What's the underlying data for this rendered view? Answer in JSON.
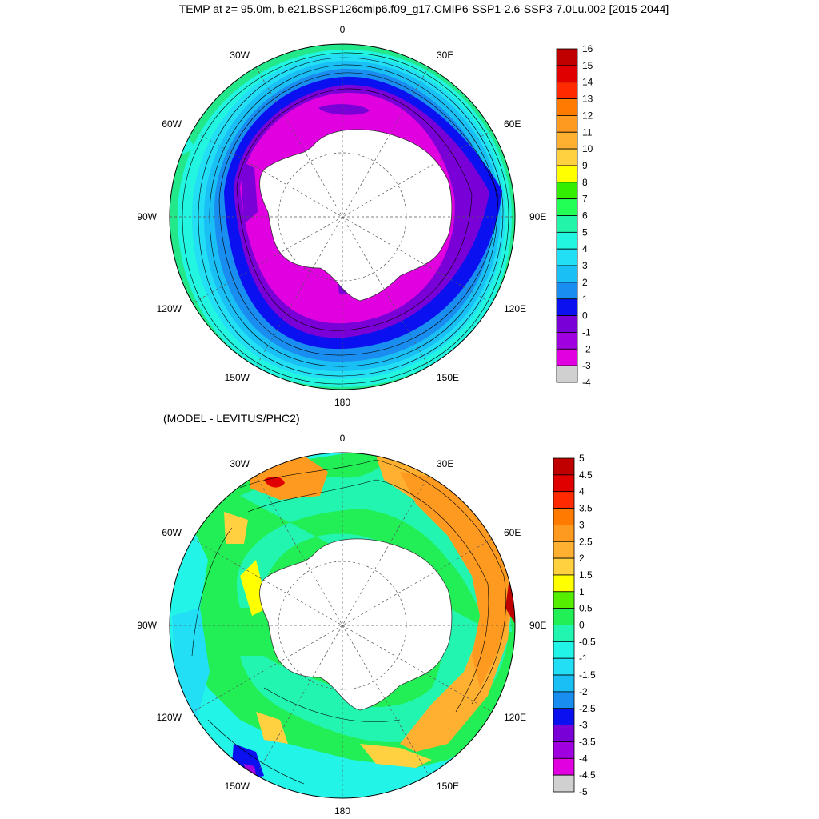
{
  "title": "TEMP at z=  95.0m, b.e21.BSSP126cmip6.f09_g17.CMIP6-SSP1-2.6-SSP3-7.0Lu.002 [2015-2044]",
  "subtitle": "(MODEL - LEVITUS/PHC2)",
  "longitude_labels": [
    "0",
    "30E",
    "60E",
    "90E",
    "120E",
    "150E",
    "180",
    "150W",
    "120W",
    "90W",
    "60W",
    "30W"
  ],
  "top_map": {
    "variable": "TEMP",
    "depth": "95.0m",
    "colorbar": {
      "levels": [
        "16",
        "15",
        "14",
        "13",
        "12",
        "11",
        "10",
        "9",
        "8",
        "7",
        "6",
        "5",
        "4",
        "3",
        "2",
        "1",
        "0",
        "-1",
        "-2",
        "-3",
        "-4"
      ],
      "colors": [
        "#c00000",
        "#e00000",
        "#ff2a00",
        "#ff7a00",
        "#ff9a20",
        "#ffb030",
        "#ffd040",
        "#ffff00",
        "#33ee00",
        "#22ff55",
        "#22f5aa",
        "#22f5e0",
        "#22dff5",
        "#1ac0f5",
        "#1a8ef0",
        "#0a10f0",
        "#7a00d8",
        "#a000e0",
        "#e000e0",
        "#d0d0d0",
        "#707070"
      ]
    },
    "zones": [
      {
        "value": "6",
        "color": "#22e88a"
      },
      {
        "value": "5",
        "color": "#22f5e0"
      },
      {
        "value": "4",
        "color": "#22dff5"
      },
      {
        "value": "3",
        "color": "#1ac0f5"
      },
      {
        "value": "2",
        "color": "#1a8ef0"
      },
      {
        "value": "1",
        "color": "#0a10f0"
      },
      {
        "value": "0",
        "color": "#7a00d8"
      },
      {
        "value": "-1",
        "color": "#e000e0"
      }
    ]
  },
  "bottom_map": {
    "colorbar": {
      "levels": [
        "5",
        "4.5",
        "4",
        "3.5",
        "3",
        "2.5",
        "2",
        "1.5",
        "1",
        "0.5",
        "0",
        "-0.5",
        "-1",
        "-1.5",
        "-2",
        "-2.5",
        "-3",
        "-3.5",
        "-4",
        "-4.5",
        "-5"
      ],
      "colors": [
        "#c00000",
        "#e00000",
        "#ff2a00",
        "#ff7a00",
        "#ff9a20",
        "#ffb030",
        "#ffd040",
        "#ffff00",
        "#55ee00",
        "#22ee55",
        "#22f5b0",
        "#22f5e8",
        "#22dff5",
        "#1ac0f5",
        "#1a8ef0",
        "#0a10f0",
        "#7a00d8",
        "#a000e0",
        "#e000e0",
        "#d0d0d0",
        "#707070"
      ]
    }
  }
}
